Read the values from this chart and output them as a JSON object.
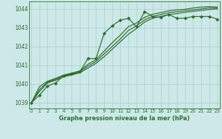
{
  "xlabel": "Graphe pression niveau de la mer (hPa)",
  "x_ticks": [
    0,
    1,
    2,
    3,
    4,
    5,
    6,
    7,
    8,
    9,
    10,
    11,
    12,
    13,
    14,
    15,
    16,
    17,
    18,
    19,
    20,
    21,
    22,
    23
  ],
  "ylim": [
    1038.7,
    1044.4
  ],
  "xlim": [
    -0.3,
    23.3
  ],
  "yticks": [
    1039,
    1040,
    1041,
    1042,
    1043,
    1044
  ],
  "bg_color": "#cce8e8",
  "grid_color": "#aacccc",
  "line_color": "#2d6e2d",
  "series_main": [
    1039.0,
    1039.4,
    1039.9,
    1040.05,
    1040.45,
    1040.55,
    1040.65,
    1041.35,
    1041.35,
    1042.7,
    1043.1,
    1043.4,
    1043.5,
    1043.05,
    1043.85,
    1043.6,
    1043.55,
    1043.7,
    1043.5,
    1043.5,
    1043.6,
    1043.6,
    1043.6,
    1043.45
  ],
  "series_smooth1": [
    1039.0,
    1039.6,
    1040.05,
    1040.2,
    1040.38,
    1040.48,
    1040.6,
    1040.85,
    1041.1,
    1041.45,
    1041.85,
    1042.25,
    1042.65,
    1042.95,
    1043.3,
    1043.5,
    1043.6,
    1043.7,
    1043.75,
    1043.82,
    1043.87,
    1043.92,
    1043.97,
    1044.0
  ],
  "series_smooth2": [
    1039.0,
    1039.7,
    1040.1,
    1040.25,
    1040.42,
    1040.52,
    1040.65,
    1040.95,
    1041.2,
    1041.6,
    1042.0,
    1042.4,
    1042.85,
    1043.1,
    1043.42,
    1043.6,
    1043.7,
    1043.8,
    1043.85,
    1043.9,
    1043.95,
    1044.0,
    1044.05,
    1044.05
  ],
  "series_smooth3": [
    1039.0,
    1039.85,
    1040.15,
    1040.3,
    1040.48,
    1040.58,
    1040.7,
    1041.05,
    1041.3,
    1041.75,
    1042.2,
    1042.6,
    1043.05,
    1043.25,
    1043.55,
    1043.72,
    1043.8,
    1043.9,
    1043.95,
    1043.98,
    1044.05,
    1044.1,
    1044.12,
    1044.1
  ],
  "marker": "D",
  "markersize": 2.2,
  "linewidth": 0.9
}
